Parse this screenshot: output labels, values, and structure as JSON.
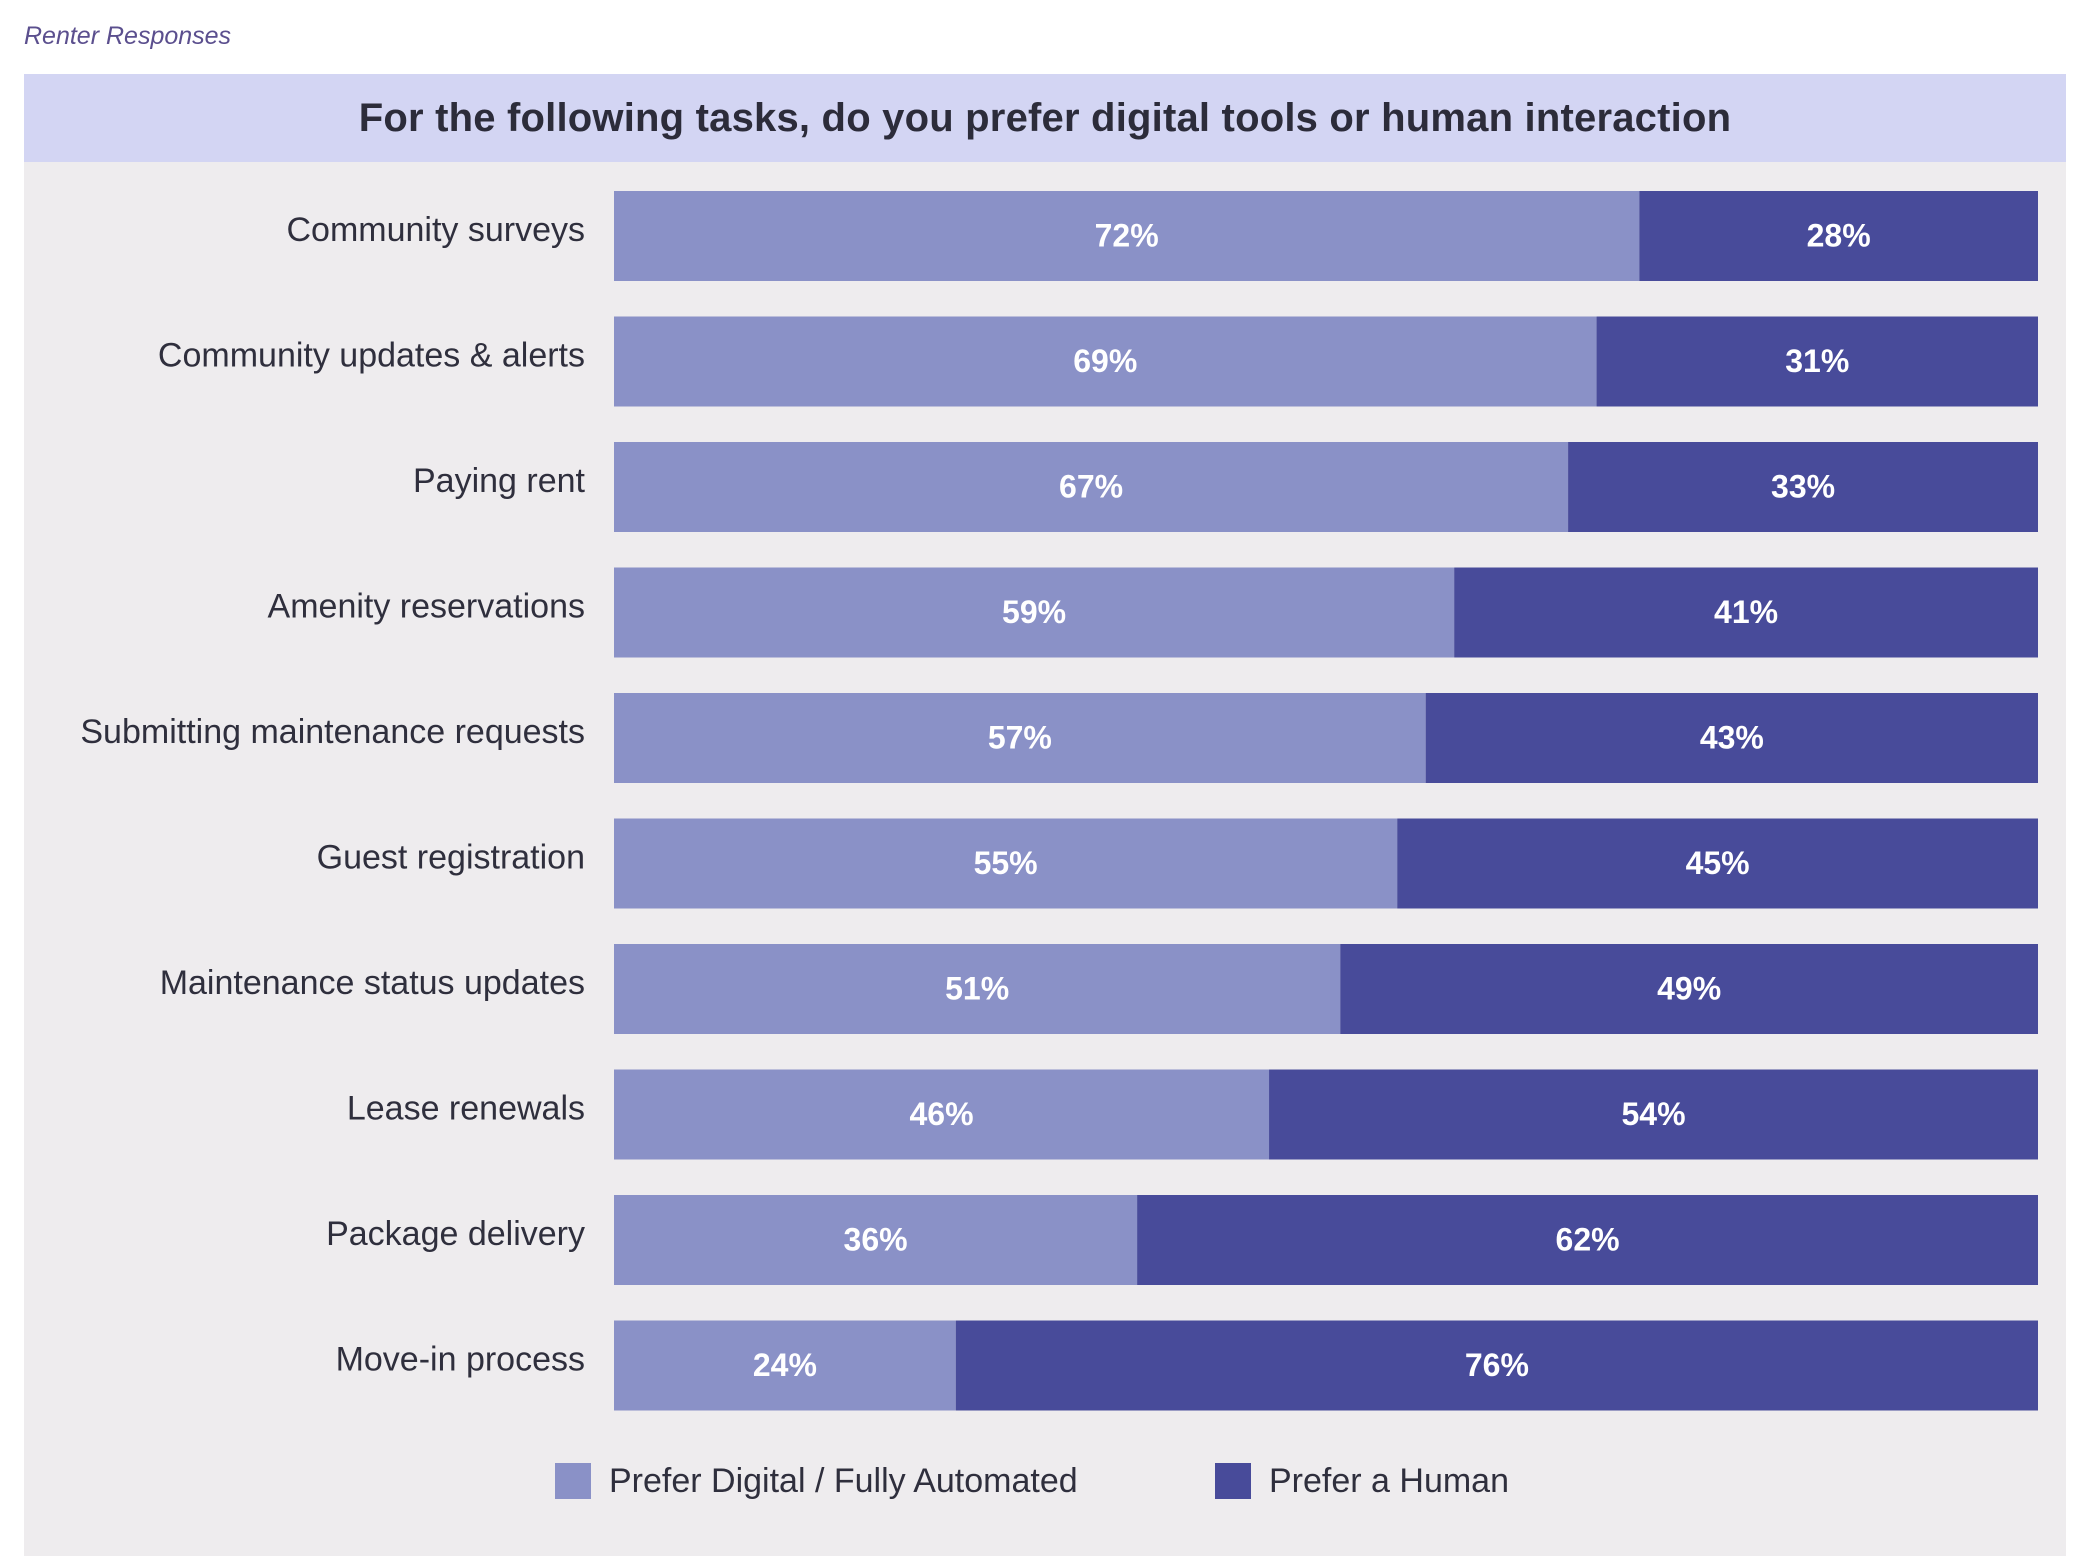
{
  "caption": "Renter Responses",
  "colors": {
    "digital": "#8a91c7",
    "human": "#484b9a",
    "title_band": "#d3d5f3",
    "panel": "#eeecee"
  },
  "chart_data": {
    "type": "bar",
    "orientation": "horizontal",
    "stacked": true,
    "title": "For the following tasks, do you prefer digital tools or human interaction",
    "categories": [
      "Community surveys",
      "Community updates & alerts",
      "Paying rent",
      "Amenity reservations",
      "Submitting maintenance requests",
      "Guest registration",
      "Maintenance status updates",
      "Lease renewals",
      "Package delivery",
      "Move-in process"
    ],
    "series": [
      {
        "name": "Prefer Digital / Fully Automated",
        "color": "#8a91c7",
        "values": [
          72,
          69,
          67,
          59,
          57,
          55,
          51,
          46,
          36,
          24
        ]
      },
      {
        "name": "Prefer a Human",
        "color": "#484b9a",
        "values": [
          28,
          31,
          33,
          41,
          43,
          45,
          49,
          54,
          62,
          76
        ]
      }
    ],
    "value_suffix": "%",
    "legend_position": "bottom",
    "grid": false
  }
}
